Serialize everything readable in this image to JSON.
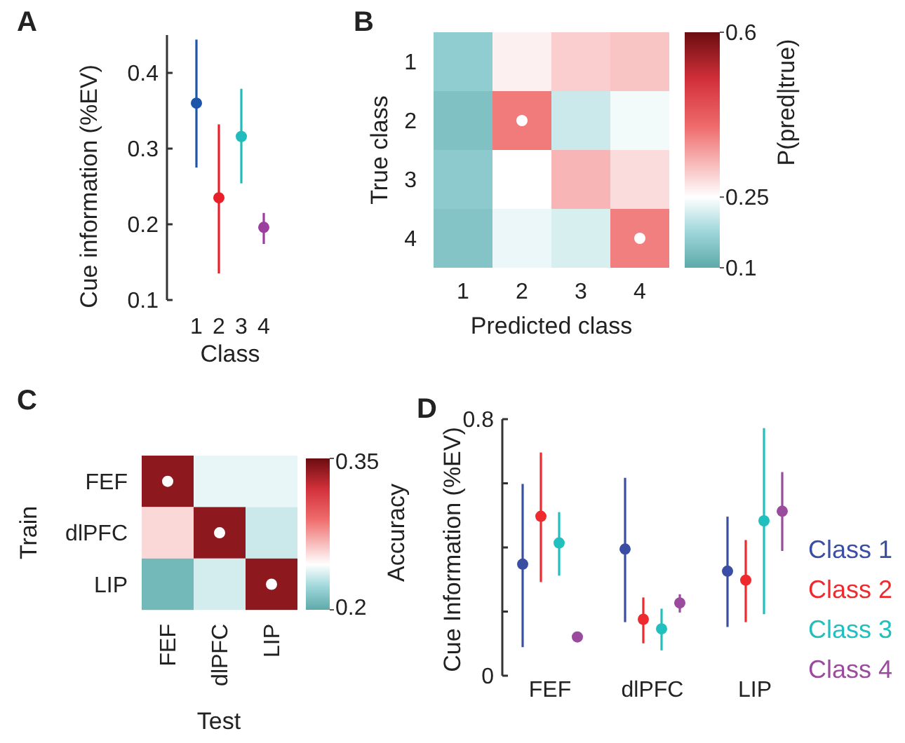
{
  "chart_data": [
    {
      "type": "scatter",
      "title": "A",
      "xlabel": "Class",
      "ylabel": "Cue information (%EV)",
      "categories": [
        "1",
        "2",
        "3",
        "4"
      ],
      "values": [
        0.36,
        0.235,
        0.316,
        0.196
      ],
      "colors": [
        "#1d56a8",
        "#e8202a",
        "#22bcbc",
        "#9b3e9e"
      ],
      "errors": [
        [
          0.275,
          0.444
        ],
        [
          0.135,
          0.332
        ],
        [
          0.254,
          0.379
        ],
        [
          0.174,
          0.215
        ]
      ],
      "ylim": [
        0.1,
        0.45
      ],
      "yticks": [
        0.1,
        0.2,
        0.3,
        0.4
      ],
      "marker": "circle"
    },
    {
      "type": "heatmap",
      "title": "B",
      "xlabel": "Predicted class",
      "ylabel": "True class",
      "clabel": "P(pred|true)",
      "categories": [
        "1",
        "2",
        "3",
        "4"
      ],
      "y_categories": [
        "1",
        "2",
        "3",
        "4"
      ],
      "cells": [
        [
          0.16,
          0.265,
          0.3,
          0.31
        ],
        [
          0.14,
          0.385,
          0.21,
          0.24
        ],
        [
          0.155,
          0.25,
          0.325,
          0.285
        ],
        [
          0.145,
          0.235,
          0.22,
          0.38
        ]
      ],
      "clim": [
        0.1,
        0.6
      ],
      "cticks": [
        0.1,
        0.25,
        0.6
      ]
    },
    {
      "type": "heatmap",
      "title": "C",
      "xlabel": "Test",
      "ylabel": "Train",
      "clabel": "Accuracy",
      "categories": [
        "FEF",
        "dlPFC",
        "LIP"
      ],
      "y_categories": [
        "FEF",
        "dlPFC",
        "LIP"
      ],
      "cells": [
        [
          0.34,
          0.24,
          0.24
        ],
        [
          0.257,
          0.34,
          0.233
        ],
        [
          0.208,
          0.235,
          0.34
        ]
      ],
      "clim": [
        0.2,
        0.35
      ],
      "cticks": [
        0.2,
        0.35
      ]
    },
    {
      "type": "scatter",
      "title": "D",
      "ylabel": "Cue Information (%EV)",
      "categories": [
        "FEF",
        "dlPFC",
        "LIP"
      ],
      "ylim": [
        0,
        0.8
      ],
      "yticks": [
        0,
        {
          "value": 0.2,
          "label": null
        },
        {
          "value": 0.4,
          "label": null
        },
        {
          "value": 0.6,
          "label": null
        },
        0.8
      ],
      "marker": "circle",
      "legend": "right",
      "series": [
        {
          "name": "Class 1",
          "color": "#3a4fa3",
          "values": [
            0.348,
            0.395,
            0.326
          ],
          "errors": [
            [
              0.089,
              0.598
            ],
            [
              0.167,
              0.617
            ],
            [
              0.152,
              0.496
            ]
          ]
        },
        {
          "name": "Class 2",
          "color": "#ee2a2f",
          "values": [
            0.497,
            0.176,
            0.298
          ],
          "errors": [
            [
              0.292,
              0.696
            ],
            [
              0.101,
              0.244
            ],
            [
              0.167,
              0.423
            ]
          ]
        },
        {
          "name": "Class 3",
          "color": "#22bfbf",
          "values": [
            0.414,
            0.146,
            0.483
          ],
          "errors": [
            [
              0.312,
              0.51
            ],
            [
              0.079,
              0.209
            ],
            [
              0.192,
              0.772
            ]
          ]
        },
        {
          "name": "Class 4",
          "color": "#9b4b9e",
          "values": [
            0.121,
            0.227,
            0.513
          ],
          "errors": [
            [
              0.11,
              0.132
            ],
            [
              0.197,
              0.254
            ],
            [
              0.389,
              0.635
            ]
          ]
        }
      ]
    }
  ]
}
